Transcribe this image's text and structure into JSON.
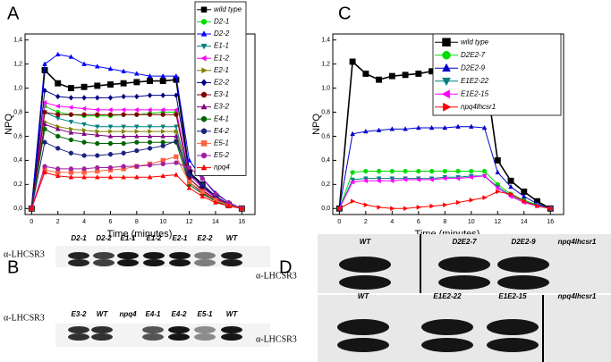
{
  "chart_data": [
    {
      "type": "line",
      "panel": "A",
      "xlabel": "Time (minutes)",
      "ylabel": "NPQ",
      "x": [
        0,
        1,
        2,
        3,
        4,
        5,
        6,
        7,
        8,
        9,
        10,
        11,
        12,
        13,
        14,
        15,
        16
      ],
      "xlim": [
        -0.5,
        17
      ],
      "xticks": [
        0,
        2,
        4,
        6,
        8,
        10,
        12,
        14,
        16
      ],
      "ylim": [
        -0.05,
        1.45
      ],
      "yticks": [
        {
          "value": 0,
          "label": "0,0"
        },
        {
          "value": 0.2,
          "label": "0,2"
        },
        {
          "value": 0.4,
          "label": "0,4"
        },
        {
          "value": 0.6,
          "label": "0,6"
        },
        {
          "value": 0.8,
          "label": "0,8"
        },
        {
          "value": 1,
          "label": "1,0"
        },
        {
          "value": 1.2,
          "label": "1,2"
        },
        {
          "value": 1.4,
          "label": "1,4"
        }
      ],
      "legend": "upper right",
      "series": [
        {
          "name": "wild type",
          "color": "#000000",
          "marker": "square",
          "values": [
            0,
            1.15,
            1.04,
            1.0,
            1.01,
            1.02,
            1.03,
            1.04,
            1.05,
            1.06,
            1.06,
            1.07,
            0.3,
            0.2,
            0.1,
            0.03,
            0
          ]
        },
        {
          "name": "D2-1",
          "color": "#00dd00",
          "marker": "circle",
          "values": [
            0,
            0.85,
            0.8,
            0.78,
            0.77,
            0.77,
            0.77,
            0.78,
            0.78,
            0.79,
            0.8,
            0.8,
            0.25,
            0.15,
            0.08,
            0.03,
            0
          ]
        },
        {
          "name": "D2-2",
          "color": "#0000ff",
          "marker": "triangle",
          "values": [
            0,
            1.2,
            1.28,
            1.26,
            1.2,
            1.18,
            1.16,
            1.14,
            1.12,
            1.1,
            1.1,
            1.1,
            0.4,
            0.25,
            0.13,
            0.05,
            0
          ]
        },
        {
          "name": "E1-1",
          "color": "#008080",
          "marker": "triangle-down",
          "values": [
            0,
            0.8,
            0.75,
            0.72,
            0.7,
            0.68,
            0.68,
            0.68,
            0.68,
            0.68,
            0.68,
            0.68,
            0.25,
            0.15,
            0.08,
            0.03,
            0
          ]
        },
        {
          "name": "E1-2",
          "color": "#ff00ff",
          "marker": "triangle-left",
          "values": [
            0,
            0.88,
            0.85,
            0.84,
            0.83,
            0.82,
            0.82,
            0.82,
            0.82,
            0.82,
            0.82,
            0.82,
            0.28,
            0.17,
            0.09,
            0.03,
            0
          ]
        },
        {
          "name": "E2-1",
          "color": "#808000",
          "marker": "triangle-right",
          "values": [
            0,
            0.72,
            0.68,
            0.66,
            0.65,
            0.64,
            0.64,
            0.64,
            0.64,
            0.64,
            0.64,
            0.64,
            0.22,
            0.13,
            0.07,
            0.03,
            0
          ]
        },
        {
          "name": "E2-2",
          "color": "#000080",
          "marker": "diamond",
          "values": [
            0,
            0.98,
            0.93,
            0.92,
            0.92,
            0.92,
            0.92,
            0.93,
            0.93,
            0.94,
            0.94,
            0.94,
            0.3,
            0.18,
            0.1,
            0.04,
            0
          ]
        },
        {
          "name": "E3-1",
          "color": "#800000",
          "marker": "circle",
          "values": [
            0,
            0.8,
            0.78,
            0.78,
            0.78,
            0.78,
            0.78,
            0.78,
            0.78,
            0.78,
            0.78,
            0.78,
            0.25,
            0.15,
            0.08,
            0.03,
            0
          ]
        },
        {
          "name": "E3-2",
          "color": "#800080",
          "marker": "triangle",
          "values": [
            0,
            0.7,
            0.66,
            0.63,
            0.62,
            0.61,
            0.6,
            0.6,
            0.6,
            0.6,
            0.6,
            0.6,
            0.22,
            0.13,
            0.07,
            0.03,
            0
          ]
        },
        {
          "name": "E4-1",
          "color": "#006400",
          "marker": "star",
          "values": [
            0,
            0.66,
            0.6,
            0.57,
            0.55,
            0.54,
            0.54,
            0.54,
            0.55,
            0.55,
            0.55,
            0.55,
            0.2,
            0.12,
            0.06,
            0.02,
            0
          ]
        },
        {
          "name": "E4-2",
          "color": "#1a237e",
          "marker": "circle",
          "values": [
            0,
            0.55,
            0.5,
            0.46,
            0.44,
            0.44,
            0.45,
            0.46,
            0.48,
            0.5,
            0.52,
            0.56,
            0.28,
            0.2,
            0.1,
            0.04,
            0
          ]
        },
        {
          "name": "E5-1",
          "color": "#ff6040",
          "marker": "square",
          "values": [
            0,
            0.32,
            0.3,
            0.3,
            0.3,
            0.31,
            0.32,
            0.33,
            0.35,
            0.37,
            0.4,
            0.43,
            0.22,
            0.14,
            0.07,
            0.03,
            0
          ]
        },
        {
          "name": "E5-2",
          "color": "#a020a0",
          "marker": "circle",
          "values": [
            0,
            0.35,
            0.33,
            0.33,
            0.33,
            0.34,
            0.34,
            0.35,
            0.35,
            0.36,
            0.37,
            0.38,
            0.34,
            0.25,
            0.12,
            0.05,
            0
          ]
        },
        {
          "name": "npq4",
          "color": "#ff0000",
          "marker": "triangle",
          "values": [
            0,
            0.3,
            0.27,
            0.26,
            0.26,
            0.26,
            0.26,
            0.26,
            0.26,
            0.26,
            0.27,
            0.28,
            0.17,
            0.1,
            0.05,
            0.02,
            0
          ]
        }
      ]
    },
    {
      "type": "line",
      "panel": "C",
      "xlabel": "Time (minutes)",
      "ylabel": "NPQ",
      "x": [
        0,
        1,
        2,
        3,
        4,
        5,
        6,
        7,
        8,
        9,
        10,
        11,
        12,
        13,
        14,
        15,
        16
      ],
      "xlim": [
        -0.5,
        17
      ],
      "xticks": [
        0,
        2,
        4,
        6,
        8,
        10,
        12,
        14,
        16
      ],
      "ylim": [
        -0.05,
        1.45
      ],
      "yticks": [
        {
          "value": 0,
          "label": "0,0"
        },
        {
          "value": 0.2,
          "label": "0,2"
        },
        {
          "value": 0.4,
          "label": "0,4"
        },
        {
          "value": 0.6,
          "label": "0,6"
        },
        {
          "value": 0.8,
          "label": "0,8"
        },
        {
          "value": 1,
          "label": "1,0"
        },
        {
          "value": 1.2,
          "label": "1,2"
        },
        {
          "value": 1.4,
          "label": "1,4"
        }
      ],
      "legend": "upper right",
      "series": [
        {
          "name": "wild type",
          "color": "#000000",
          "marker": "square",
          "values": [
            0,
            1.22,
            1.12,
            1.07,
            1.1,
            1.11,
            1.12,
            1.14,
            1.15,
            1.16,
            1.17,
            1.18,
            0.4,
            0.23,
            0.14,
            0.06,
            0
          ]
        },
        {
          "name": "D2E2-7",
          "color": "#00dd00",
          "marker": "circle",
          "values": [
            0,
            0.3,
            0.31,
            0.31,
            0.31,
            0.31,
            0.31,
            0.31,
            0.31,
            0.31,
            0.31,
            0.31,
            0.2,
            0.12,
            0.07,
            0.03,
            0
          ]
        },
        {
          "name": "D2E2-9",
          "color": "#0000cc",
          "marker": "triangle",
          "values": [
            0,
            0.62,
            0.64,
            0.65,
            0.66,
            0.66,
            0.67,
            0.67,
            0.67,
            0.68,
            0.68,
            0.67,
            0.3,
            0.18,
            0.1,
            0.04,
            0
          ]
        },
        {
          "name": "E1E2-22",
          "color": "#008080",
          "marker": "triangle-down",
          "values": [
            0,
            0.24,
            0.25,
            0.25,
            0.25,
            0.25,
            0.25,
            0.25,
            0.26,
            0.26,
            0.27,
            0.27,
            0.18,
            0.11,
            0.06,
            0.03,
            0
          ]
        },
        {
          "name": "E1E2-15",
          "color": "#ff00ff",
          "marker": "triangle-left",
          "values": [
            0,
            0.22,
            0.23,
            0.23,
            0.23,
            0.24,
            0.24,
            0.24,
            0.25,
            0.25,
            0.26,
            0.27,
            0.17,
            0.1,
            0.05,
            0.02,
            0
          ]
        },
        {
          "name": "npq4lhcsr1",
          "color": "#ff0000",
          "marker": "triangle-right",
          "values": [
            0,
            0.06,
            0.03,
            0.01,
            0,
            0,
            0.01,
            0.02,
            0.03,
            0.05,
            0.07,
            0.09,
            0.14,
            0.12,
            0.06,
            0.02,
            0
          ]
        }
      ]
    }
  ],
  "blots": [
    {
      "panel": "B",
      "rows": [
        {
          "antibody": "α-LHCSR3",
          "lanes": [
            "D2-1",
            "D2-2",
            "E1-1",
            "E1-2",
            "E2-1",
            "E2-2",
            "WT"
          ]
        },
        {
          "antibody": "α-LHCSR3",
          "lanes": [
            "E3-2",
            "WT",
            "npq4",
            "E4-1",
            "E4-2",
            "E5-1",
            "WT"
          ]
        }
      ]
    },
    {
      "panel": "D",
      "rows": [
        {
          "antibody": "α-LHCSR3",
          "lanes": [
            "WT",
            "D2E2-7",
            "D2E2-9",
            "npq4lhcsr1"
          ]
        },
        {
          "antibody": "α-LHCSR3",
          "lanes": [
            "WT",
            "E1E2-22",
            "E1E2-15",
            "npq4lhcsr1"
          ]
        }
      ]
    }
  ]
}
